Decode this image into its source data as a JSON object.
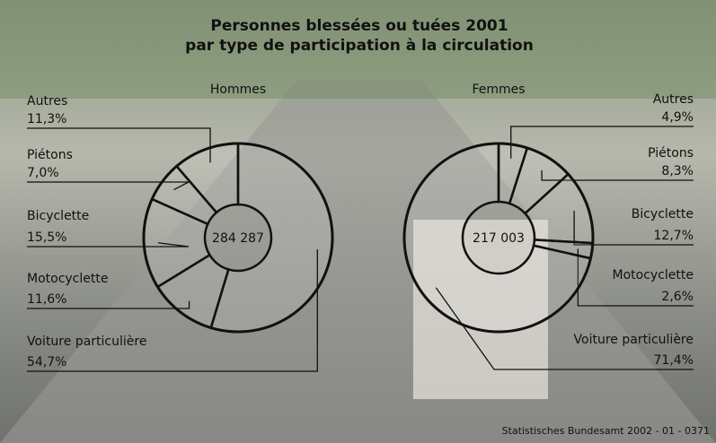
{
  "title": [
    "Personnes blessées ou tuées 2001",
    "par type de participation à la circulation"
  ],
  "source": "Statistisches Bundesamt 2002 - 01 - 0371",
  "chart_data": [
    {
      "type": "pie",
      "name": "Hommes",
      "side": "left",
      "direction": "counterclockwise",
      "color": "#ffffff",
      "line_color": "#111111",
      "total": {
        "value": 284287,
        "label": "284 287"
      },
      "categories": [
        "Autres",
        "Piétons",
        "Bicyclette",
        "Motocyclette",
        "Voiture particulière"
      ],
      "values": [
        11.3,
        7.0,
        15.5,
        11.6,
        54.7
      ],
      "value_labels": [
        "11,3%",
        "7,0%",
        "15,5%",
        "11,6%",
        "54,7%"
      ]
    },
    {
      "type": "pie",
      "name": "Femmes",
      "side": "right",
      "direction": "clockwise",
      "color": "#ffffff",
      "line_color": "#111111",
      "total": {
        "value": 217003,
        "label": "217 003"
      },
      "categories": [
        "Autres",
        "Piétons",
        "Bicyclette",
        "Motocyclette",
        "Voiture particulière"
      ],
      "values": [
        4.9,
        8.3,
        12.7,
        2.6,
        71.4
      ],
      "value_labels": [
        "4,9%",
        "8,3%",
        "12,7%",
        "2,6%",
        "71,4%"
      ]
    }
  ]
}
